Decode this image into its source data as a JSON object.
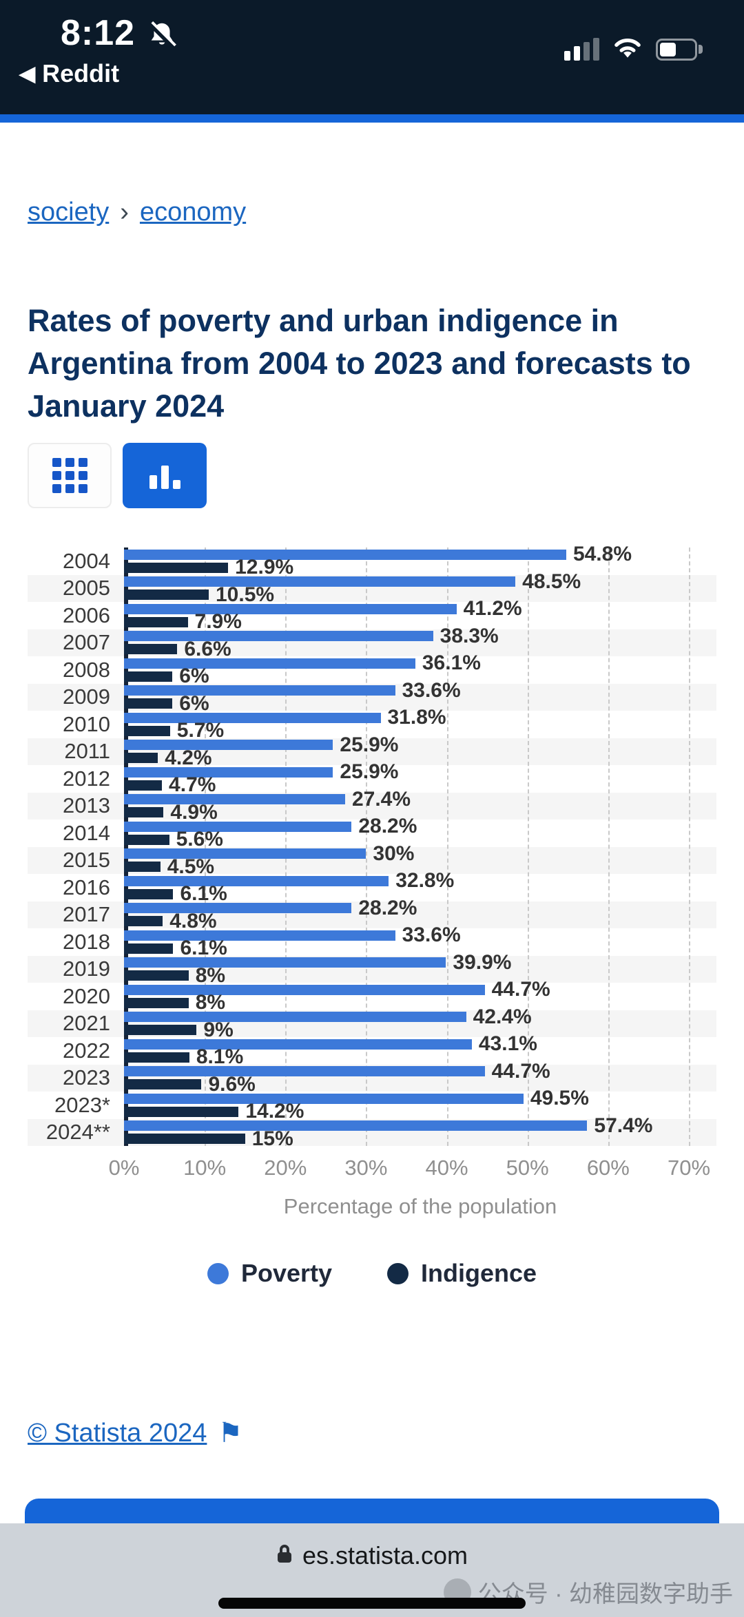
{
  "status_bar": {
    "time": "8:12",
    "back_arrow": "◀",
    "back_label": "Reddit"
  },
  "breadcrumb": {
    "links": [
      "society",
      "economy"
    ],
    "separator": "›"
  },
  "page": {
    "title": "Rates of poverty and urban indigence in Argentina from 2004 to 2023 and forecasts to January 2024"
  },
  "chart_data": {
    "type": "bar",
    "orientation": "horizontal",
    "categories": [
      "2004",
      "2005",
      "2006",
      "2007",
      "2008",
      "2009",
      "2010",
      "2011",
      "2012",
      "2013",
      "2014",
      "2015",
      "2016",
      "2017",
      "2018",
      "2019",
      "2020",
      "2021",
      "2022",
      "2023",
      "2023*",
      "2024**"
    ],
    "series": [
      {
        "name": "Poverty",
        "color": "#3d79d9",
        "values": [
          54.8,
          48.5,
          41.2,
          38.3,
          36.1,
          33.6,
          31.8,
          25.9,
          25.9,
          27.4,
          28.2,
          30,
          32.8,
          28.2,
          33.6,
          39.9,
          44.7,
          42.4,
          43.1,
          44.7,
          49.5,
          57.4
        ]
      },
      {
        "name": "Indigence",
        "color": "#132a45",
        "values": [
          12.9,
          10.5,
          7.9,
          6.6,
          6,
          6,
          5.7,
          4.2,
          4.7,
          4.9,
          5.6,
          4.5,
          6.1,
          4.8,
          6.1,
          8,
          8,
          9,
          8.1,
          9.6,
          14.2,
          15
        ]
      }
    ],
    "xlim": [
      0,
      70
    ],
    "x_ticks": [
      "0%",
      "10%",
      "20%",
      "30%",
      "40%",
      "50%",
      "60%",
      "70%"
    ],
    "xlabel": "Percentage of the population",
    "grid": "dashed-vertical",
    "legend_position": "bottom",
    "value_labels": true
  },
  "legend": {
    "items": [
      {
        "label": "Poverty",
        "color": "#3d79d9"
      },
      {
        "label": "Indigence",
        "color": "#132a45"
      }
    ]
  },
  "footer": {
    "copyright": "© Statista 2024",
    "flag_icon": "⚑"
  },
  "browser": {
    "domain": "es.statista.com"
  },
  "watermark": {
    "text": "公众号 · 幼稚园数字助手"
  },
  "colors": {
    "accent_blue": "#1565d8",
    "poverty_blue": "#3d79d9",
    "indigence_navy": "#132a45",
    "title_navy": "#0d3160",
    "link_blue": "#1b66c0",
    "status_bar_bg": "#0b1a29"
  }
}
